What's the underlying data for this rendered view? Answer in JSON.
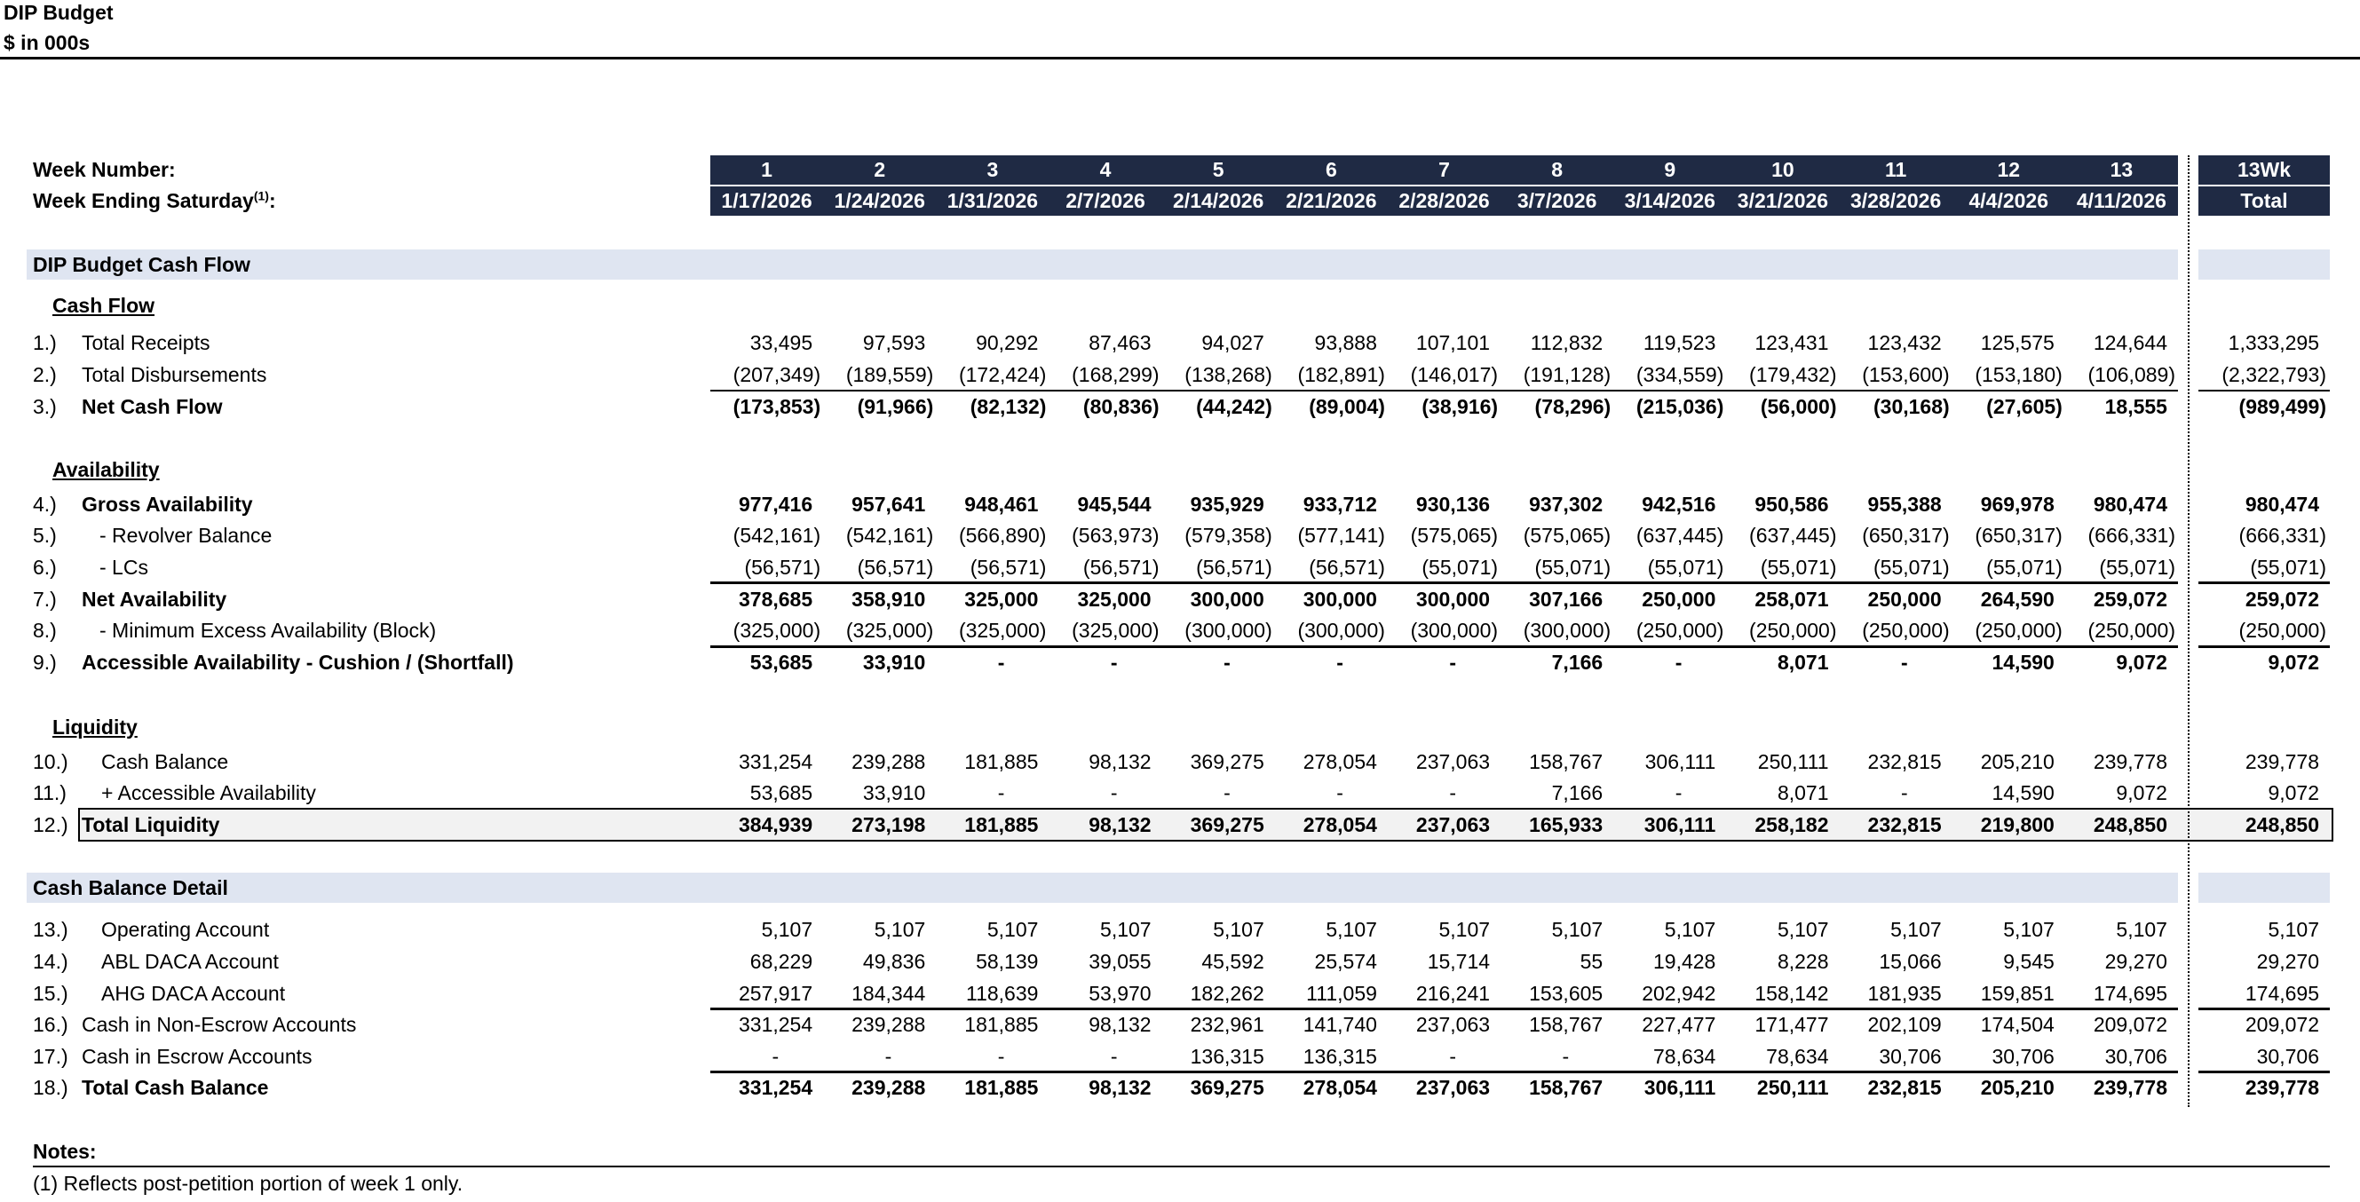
{
  "title": "DIP Budget",
  "subtitle": "$ in 000s",
  "header": {
    "week_number_label": "Week Number:",
    "week_ending_label": "Week Ending Saturday",
    "week_ending_sup": "(1)",
    "week_ending_colon": ":",
    "weeks": [
      "1",
      "2",
      "3",
      "4",
      "5",
      "6",
      "7",
      "8",
      "9",
      "10",
      "11",
      "12",
      "13"
    ],
    "dates": [
      "1/17/2026",
      "1/24/2026",
      "1/31/2026",
      "2/7/2026",
      "2/14/2026",
      "2/21/2026",
      "2/28/2026",
      "3/7/2026",
      "3/14/2026",
      "3/21/2026",
      "3/28/2026",
      "4/4/2026",
      "4/11/2026"
    ],
    "total_top": "13Wk",
    "total_bottom": "Total"
  },
  "sections": {
    "cash_flow_title": "DIP Budget Cash Flow",
    "cash_balance_detail_title": "Cash Balance Detail"
  },
  "subheadings": {
    "cash_flow": "Cash Flow",
    "availability": "Availability",
    "liquidity": "Liquidity"
  },
  "rows": [
    {
      "num": "1.)",
      "label": "Total Receipts",
      "values": [
        "33,495",
        "97,593",
        "90,292",
        "87,463",
        "94,027",
        "93,888",
        "107,101",
        "112,832",
        "119,523",
        "123,431",
        "123,432",
        "125,575",
        "124,644"
      ],
      "total": "1,333,295"
    },
    {
      "num": "2.)",
      "label": "Total Disbursements",
      "values": [
        "(207,349)",
        "(189,559)",
        "(172,424)",
        "(168,299)",
        "(138,268)",
        "(182,891)",
        "(146,017)",
        "(191,128)",
        "(334,559)",
        "(179,432)",
        "(153,600)",
        "(153,180)",
        "(106,089)"
      ],
      "total": "(2,322,793)"
    },
    {
      "num": "3.)",
      "label": "Net Cash Flow",
      "values": [
        "(173,853)",
        "(91,966)",
        "(82,132)",
        "(80,836)",
        "(44,242)",
        "(89,004)",
        "(38,916)",
        "(78,296)",
        "(215,036)",
        "(56,000)",
        "(30,168)",
        "(27,605)",
        "18,555"
      ],
      "total": "(989,499)"
    },
    {
      "num": "4.)",
      "label": "Gross Availability",
      "values": [
        "977,416",
        "957,641",
        "948,461",
        "945,544",
        "935,929",
        "933,712",
        "930,136",
        "937,302",
        "942,516",
        "950,586",
        "955,388",
        "969,978",
        "980,474"
      ],
      "total": "980,474"
    },
    {
      "num": "5.)",
      "label": "- Revolver Balance",
      "values": [
        "(542,161)",
        "(542,161)",
        "(566,890)",
        "(563,973)",
        "(579,358)",
        "(577,141)",
        "(575,065)",
        "(575,065)",
        "(637,445)",
        "(637,445)",
        "(650,317)",
        "(650,317)",
        "(666,331)"
      ],
      "total": "(666,331)"
    },
    {
      "num": "6.)",
      "label": "- LCs",
      "values": [
        "(56,571)",
        "(56,571)",
        "(56,571)",
        "(56,571)",
        "(56,571)",
        "(56,571)",
        "(55,071)",
        "(55,071)",
        "(55,071)",
        "(55,071)",
        "(55,071)",
        "(55,071)",
        "(55,071)"
      ],
      "total": "(55,071)"
    },
    {
      "num": "7.)",
      "label": "Net Availability",
      "values": [
        "378,685",
        "358,910",
        "325,000",
        "325,000",
        "300,000",
        "300,000",
        "300,000",
        "307,166",
        "250,000",
        "258,071",
        "250,000",
        "264,590",
        "259,072"
      ],
      "total": "259,072"
    },
    {
      "num": "8.)",
      "label": "- Minimum Excess Availability (Block)",
      "values": [
        "(325,000)",
        "(325,000)",
        "(325,000)",
        "(325,000)",
        "(300,000)",
        "(300,000)",
        "(300,000)",
        "(300,000)",
        "(250,000)",
        "(250,000)",
        "(250,000)",
        "(250,000)",
        "(250,000)"
      ],
      "total": "(250,000)"
    },
    {
      "num": "9.)",
      "label": "Accessible Availability - Cushion / (Shortfall)",
      "values": [
        "53,685",
        "33,910",
        "-",
        "-",
        "-",
        "-",
        "-",
        "7,166",
        "-",
        "8,071",
        "-",
        "14,590",
        "9,072"
      ],
      "total": "9,072"
    },
    {
      "num": "10.)",
      "label": "Cash Balance",
      "values": [
        "331,254",
        "239,288",
        "181,885",
        "98,132",
        "369,275",
        "278,054",
        "237,063",
        "158,767",
        "306,111",
        "250,111",
        "232,815",
        "205,210",
        "239,778"
      ],
      "total": "239,778"
    },
    {
      "num": "11.)",
      "label": "+ Accessible Availability",
      "values": [
        "53,685",
        "33,910",
        "-",
        "-",
        "-",
        "-",
        "-",
        "7,166",
        "-",
        "8,071",
        "-",
        "14,590",
        "9,072"
      ],
      "total": "9,072"
    },
    {
      "num": "12.)",
      "label": "Total Liquidity",
      "values": [
        "384,939",
        "273,198",
        "181,885",
        "98,132",
        "369,275",
        "278,054",
        "237,063",
        "165,933",
        "306,111",
        "258,182",
        "232,815",
        "219,800",
        "248,850"
      ],
      "total": "248,850"
    },
    {
      "num": "13.)",
      "label": "Operating Account",
      "values": [
        "5,107",
        "5,107",
        "5,107",
        "5,107",
        "5,107",
        "5,107",
        "5,107",
        "5,107",
        "5,107",
        "5,107",
        "5,107",
        "5,107",
        "5,107"
      ],
      "total": "5,107"
    },
    {
      "num": "14.)",
      "label": "ABL DACA Account",
      "values": [
        "68,229",
        "49,836",
        "58,139",
        "39,055",
        "45,592",
        "25,574",
        "15,714",
        "55",
        "19,428",
        "8,228",
        "15,066",
        "9,545",
        "29,270"
      ],
      "total": "29,270"
    },
    {
      "num": "15.)",
      "label": "AHG DACA Account",
      "values": [
        "257,917",
        "184,344",
        "118,639",
        "53,970",
        "182,262",
        "111,059",
        "216,241",
        "153,605",
        "202,942",
        "158,142",
        "181,935",
        "159,851",
        "174,695"
      ],
      "total": "174,695"
    },
    {
      "num": "16.)",
      "label": "Cash in Non-Escrow Accounts",
      "values": [
        "331,254",
        "239,288",
        "181,885",
        "98,132",
        "232,961",
        "141,740",
        "237,063",
        "158,767",
        "227,477",
        "171,477",
        "202,109",
        "174,504",
        "209,072"
      ],
      "total": "209,072"
    },
    {
      "num": "17.)",
      "label": "Cash in Escrow Accounts",
      "values": [
        "-",
        "-",
        "-",
        "-",
        "136,315",
        "136,315",
        "-",
        "-",
        "78,634",
        "78,634",
        "30,706",
        "30,706",
        "30,706"
      ],
      "total": "30,706"
    },
    {
      "num": "18.)",
      "label": "Total Cash Balance",
      "values": [
        "331,254",
        "239,288",
        "181,885",
        "98,132",
        "369,275",
        "278,054",
        "237,063",
        "158,767",
        "306,111",
        "250,111",
        "232,815",
        "205,210",
        "239,778"
      ],
      "total": "239,778"
    }
  ],
  "notes": {
    "heading": "Notes:",
    "items": [
      "(1) Reflects post-petition portion of week 1 only."
    ]
  },
  "colors": {
    "header_bg": "#1f2a44",
    "band_bg": "#dfe5f1",
    "total_box_bg": "#f2f2f2"
  }
}
